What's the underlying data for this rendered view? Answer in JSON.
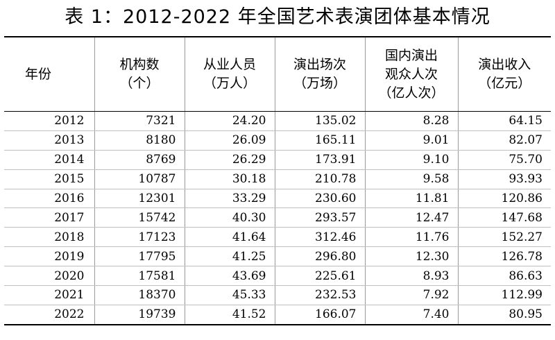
{
  "title": "表 1：2012-2022 年全国艺术表演团体基本情况",
  "table": {
    "headers": [
      {
        "lines": [
          "年份"
        ]
      },
      {
        "lines": [
          "机构数",
          "（个）"
        ]
      },
      {
        "lines": [
          "从业人员",
          "（万人）"
        ]
      },
      {
        "lines": [
          "演出场次",
          "（万场）"
        ]
      },
      {
        "lines": [
          "国内演出",
          "观众人次",
          "（亿人次）"
        ]
      },
      {
        "lines": [
          "演出收入",
          "（亿元）"
        ]
      }
    ],
    "rows": [
      [
        "2012",
        "7321",
        "24.20",
        "135.02",
        "8.28",
        "64.15"
      ],
      [
        "2013",
        "8180",
        "26.09",
        "165.11",
        "9.01",
        "82.07"
      ],
      [
        "2014",
        "8769",
        "26.29",
        "173.91",
        "9.10",
        "75.70"
      ],
      [
        "2015",
        "10787",
        "30.18",
        "210.78",
        "9.58",
        "93.93"
      ],
      [
        "2016",
        "12301",
        "33.29",
        "230.60",
        "11.81",
        "120.86"
      ],
      [
        "2017",
        "15742",
        "40.30",
        "293.57",
        "12.47",
        "147.68"
      ],
      [
        "2018",
        "17123",
        "41.64",
        "312.46",
        "11.76",
        "152.27"
      ],
      [
        "2019",
        "17795",
        "41.25",
        "296.80",
        "12.30",
        "126.78"
      ],
      [
        "2020",
        "17581",
        "43.69",
        "225.61",
        "8.93",
        "86.63"
      ],
      [
        "2021",
        "18370",
        "45.33",
        "232.53",
        "7.92",
        "112.99"
      ],
      [
        "2022",
        "19739",
        "41.52",
        "166.07",
        "7.40",
        "80.95"
      ]
    ]
  }
}
